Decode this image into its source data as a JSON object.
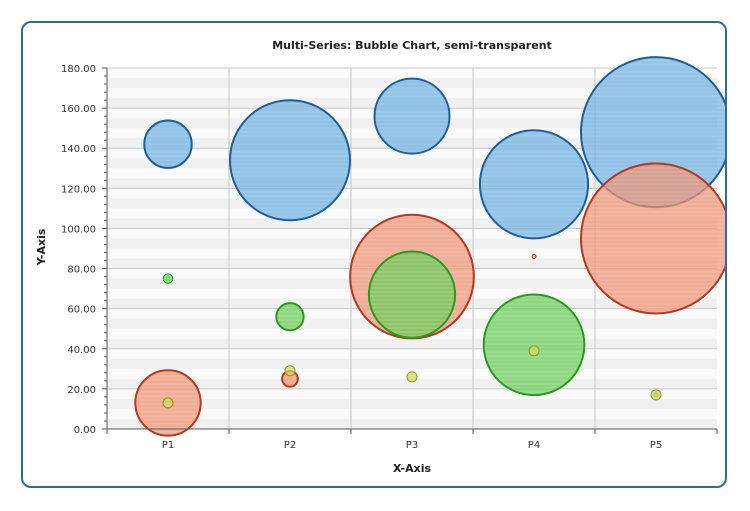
{
  "chart_data": {
    "type": "bubble",
    "title": "Multi-Series: Bubble Chart, semi-transparent",
    "xlabel": "X-Axis",
    "ylabel": "Y-Axis",
    "categories": [
      "P1",
      "P2",
      "P3",
      "P4",
      "P5"
    ],
    "ylim": [
      0,
      180
    ],
    "yticks": [
      "0.00",
      "20.00",
      "40.00",
      "60.00",
      "80.00",
      "100.00",
      "120.00",
      "140.00",
      "160.00",
      "180.00"
    ],
    "grid": true,
    "series": [
      {
        "color": "#6aaee0",
        "stroke": "#1f5f96",
        "points": [
          {
            "x": "P1",
            "y": 142,
            "size": 10
          },
          {
            "x": "P2",
            "y": 134,
            "size": 64
          },
          {
            "x": "P3",
            "y": 156,
            "size": 25
          },
          {
            "x": "P4",
            "y": 122,
            "size": 52
          },
          {
            "x": "P5",
            "y": 148,
            "size": 100
          }
        ]
      },
      {
        "color": "#ee9070",
        "stroke": "#b33a1f",
        "points": [
          {
            "x": "P1",
            "y": 13,
            "size": 19
          },
          {
            "x": "P2",
            "y": 25,
            "size": 1.1
          },
          {
            "x": "P3",
            "y": 76,
            "size": 68
          },
          {
            "x": "P4",
            "y": 86,
            "size": 0.02
          },
          {
            "x": "P5",
            "y": 95,
            "size": 100
          }
        ]
      },
      {
        "color": "#66cc55",
        "stroke": "#2a9a1e",
        "points": [
          {
            "x": "P1",
            "y": 75,
            "size": 0.4
          },
          {
            "x": "P2",
            "y": 56,
            "size": 3.3
          },
          {
            "x": "P3",
            "y": 67,
            "size": 33
          },
          {
            "x": "P4",
            "y": 42,
            "size": 45
          },
          {
            "x": "P5",
            "y": 17,
            "size": 0.0
          }
        ]
      },
      {
        "color": "#d2d862",
        "stroke": "#8a9a1a",
        "points": [
          {
            "x": "P1",
            "y": 13,
            "size": 0.45
          },
          {
            "x": "P2",
            "y": 29,
            "size": 0.45
          },
          {
            "x": "P3",
            "y": 26,
            "size": 0.45
          },
          {
            "x": "P4",
            "y": 39,
            "size": 0.45
          },
          {
            "x": "P5",
            "y": 17,
            "size": 0.45
          }
        ]
      }
    ]
  }
}
